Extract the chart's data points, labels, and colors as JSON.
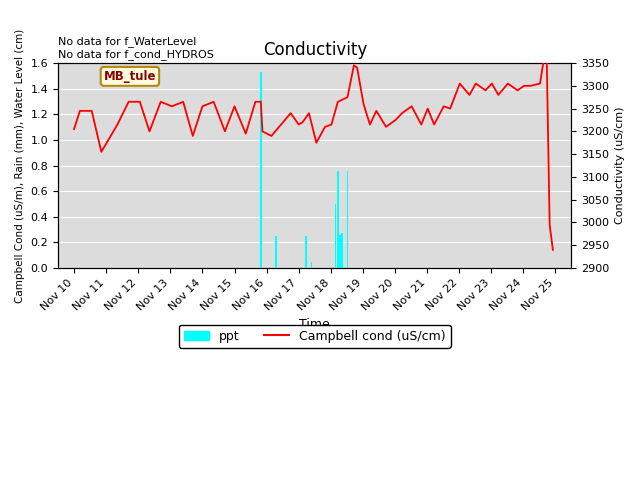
{
  "title": "Conductivity",
  "left_ylabel": "Campbell Cond (uS/m), Rain (mm), Water Level (cm)",
  "right_ylabel": "Conductivity (uS/cm)",
  "xlabel": "Time",
  "annotations": [
    "No data for f_WaterLevel",
    "No data for f_cond_HYDROS"
  ],
  "legend_label": "MB_tule",
  "ylim_left": [
    0.0,
    1.6
  ],
  "ylim_right": [
    2900,
    3350
  ],
  "xtick_labels": [
    "Nov 10",
    "Nov 11",
    "Nov 12",
    "Nov 13",
    "Nov 14",
    "Nov 15",
    "Nov 16",
    "Nov 17",
    "Nov 18",
    "Nov 19",
    "Nov 20",
    "Nov 21",
    "Nov 22",
    "Nov 23",
    "Nov 24",
    "Nov 25"
  ],
  "bg_color": "#dcdcdc",
  "red_line_color": "#ff0000",
  "cyan_bar_color": "#00ffff",
  "red_x_pts": [
    0.0,
    0.18,
    0.55,
    0.85,
    1.35,
    1.7,
    2.05,
    2.35,
    2.7,
    3.05,
    3.4,
    3.7,
    4.0,
    4.35,
    4.7,
    5.0,
    5.35,
    5.65,
    5.82,
    5.87,
    6.15,
    6.45,
    6.75,
    7.0,
    7.12,
    7.32,
    7.55,
    7.82,
    8.02,
    8.22,
    8.52,
    8.72,
    8.82,
    9.02,
    9.22,
    9.42,
    9.72,
    10.02,
    10.22,
    10.52,
    10.82,
    11.02,
    11.22,
    11.52,
    11.72,
    12.02,
    12.32,
    12.52,
    12.82,
    13.02,
    13.22,
    13.52,
    13.82,
    14.02,
    14.22,
    14.52,
    14.72,
    14.82,
    14.92
  ],
  "red_y_pts": [
    3205,
    3245,
    3245,
    3155,
    3215,
    3265,
    3265,
    3200,
    3265,
    3255,
    3265,
    3190,
    3255,
    3265,
    3200,
    3255,
    3195,
    3265,
    3265,
    3200,
    3190,
    3215,
    3240,
    3215,
    3220,
    3240,
    3175,
    3210,
    3215,
    3265,
    3275,
    3345,
    3340,
    3260,
    3215,
    3245,
    3210,
    3225,
    3240,
    3255,
    3215,
    3250,
    3215,
    3255,
    3250,
    3305,
    3280,
    3305,
    3290,
    3305,
    3280,
    3305,
    3290,
    3300,
    3300,
    3305,
    3395,
    2995,
    2940
  ],
  "ppt_x": [
    5.82,
    6.3,
    7.22,
    7.4,
    8.15,
    8.22,
    8.28,
    8.35,
    8.52
  ],
  "ppt_y": [
    1.53,
    0.25,
    0.25,
    0.05,
    0.5,
    0.76,
    0.26,
    0.27,
    0.76
  ]
}
